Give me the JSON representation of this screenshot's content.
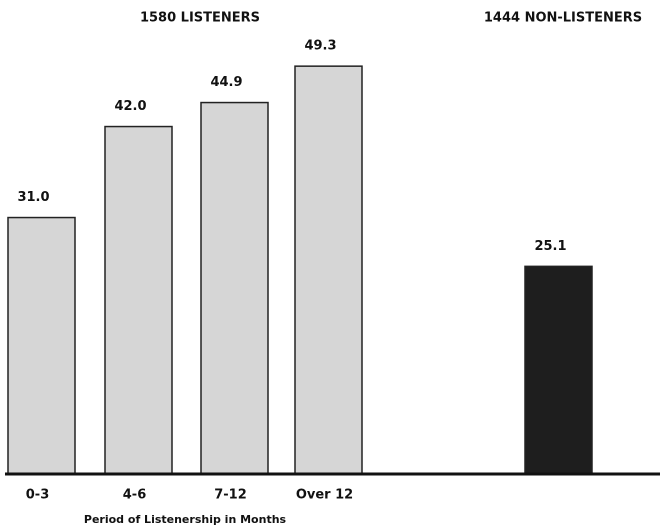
{
  "chart_data": {
    "type": "bar",
    "annotations": [
      "1580 LISTENERS",
      "1444 NON-LISTENERS"
    ],
    "x_label": "Period of Listenership in Months",
    "categories": [
      "0-3",
      "4-6",
      "7-12",
      "Over 12",
      null
    ],
    "values": [
      31.0,
      42.0,
      44.9,
      49.3,
      25.1
    ],
    "value_labels": [
      "31.0",
      "42.0",
      "44.9",
      "49.3",
      "25.1"
    ],
    "colors": [
      "#d6d6d6",
      "#d6d6d6",
      "#d6d6d6",
      "#d6d6d6",
      "#1e1e1e"
    ],
    "ylim": [
      0,
      55
    ]
  }
}
